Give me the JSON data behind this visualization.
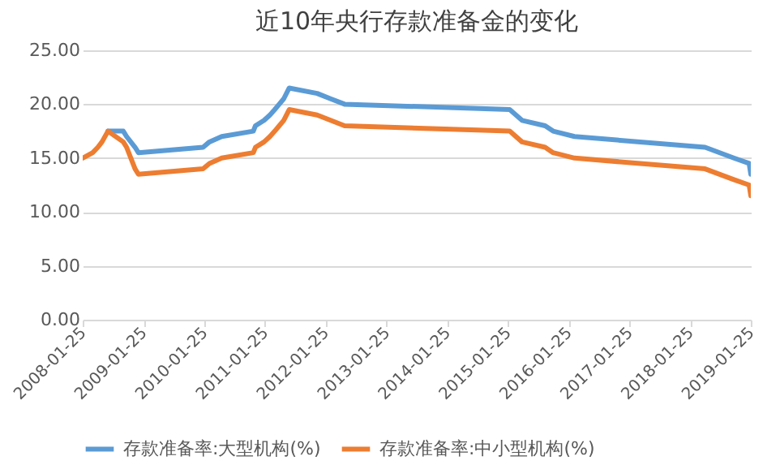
{
  "chart_data": {
    "type": "line",
    "title": "近10年央行存款准备金的变化",
    "x": [
      "2008-01-25",
      "2008-03-25",
      "2008-04-25",
      "2008-05-20",
      "2008-06-25",
      "2008-09-25",
      "2008-10-15",
      "2008-12-05",
      "2008-12-25",
      "2010-01-18",
      "2010-02-25",
      "2010-05-10",
      "2010-11-16",
      "2010-11-29",
      "2011-01-20",
      "2011-02-24",
      "2011-03-25",
      "2011-04-21",
      "2011-05-18",
      "2011-06-20",
      "2011-12-05",
      "2012-02-24",
      "2012-05-18",
      "2015-02-05",
      "2015-04-20",
      "2015-09-06",
      "2015-10-24",
      "2016-03-01",
      "2018-04-25",
      "2018-10-15",
      "2019-01-15",
      "2019-01-25"
    ],
    "series": [
      {
        "name": "存款准备率:大型机构(%)",
        "color": "#5b9bd5",
        "values": [
          null,
          null,
          null,
          null,
          17.5,
          17.5,
          17,
          16,
          15.5,
          16,
          16.5,
          17,
          17.5,
          18,
          18.5,
          19,
          19.5,
          20,
          20.5,
          21.5,
          21,
          20.5,
          20,
          19.5,
          18.5,
          18,
          17.5,
          17,
          16,
          15,
          14.5,
          13.5
        ]
      },
      {
        "name": "存款准备率:中小型机构(%)",
        "color": "#ed7d31",
        "values": [
          15,
          15.5,
          16,
          16.5,
          17.5,
          16.5,
          16,
          14,
          13.5,
          14,
          14.5,
          15,
          15.5,
          16,
          16.5,
          17,
          17.5,
          18,
          18.5,
          19.5,
          19,
          18.5,
          18,
          17.5,
          16.5,
          16,
          15.5,
          15,
          14,
          13,
          12.5,
          11.5
        ]
      }
    ],
    "xlim": [
      "2008-01-25",
      "2019-01-25"
    ],
    "xticks": [
      "2008-01-25",
      "2009-01-25",
      "2010-01-25",
      "2011-01-25",
      "2012-01-25",
      "2013-01-25",
      "2014-01-25",
      "2015-01-25",
      "2016-01-25",
      "2017-01-25",
      "2018-01-25",
      "2019-01-25"
    ],
    "ylim": [
      0,
      25
    ],
    "yticks": [
      {
        "value": 0,
        "label": "0.00"
      },
      {
        "value": 5,
        "label": "5.00"
      },
      {
        "value": 10,
        "label": "10.00"
      },
      {
        "value": 15,
        "label": "15.00"
      },
      {
        "value": 20,
        "label": "20.00"
      },
      {
        "value": 25,
        "label": "25.00"
      }
    ],
    "grid": "y",
    "legend": "bottom",
    "marker": "none",
    "line_style": "solid"
  }
}
